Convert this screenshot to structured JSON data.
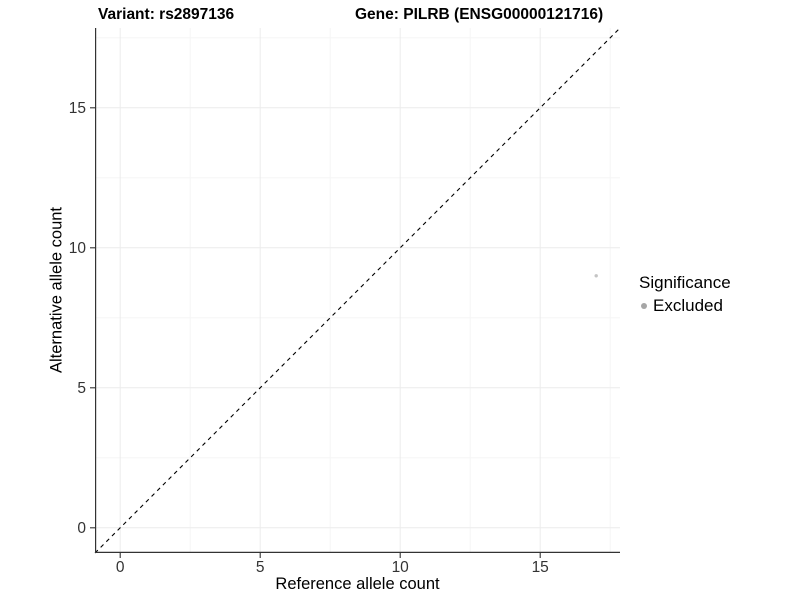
{
  "chart_data": {
    "type": "scatter",
    "titles": [
      "Variant: rs2897136",
      "Gene: PILRB (ENSG00000121716)"
    ],
    "xlabel": "Reference allele count",
    "ylabel": "Alternative allele count",
    "xlim": [
      -0.9,
      17.85
    ],
    "ylim": [
      -0.9,
      17.85
    ],
    "xticks": [
      0,
      5,
      10,
      15
    ],
    "yticks": [
      0,
      5,
      10,
      15
    ],
    "minor_ticks": [
      2.5,
      7.5,
      12.5,
      17.5
    ],
    "grid": "major and minor gridlines, very light gray, on white panel",
    "points": [
      {
        "x": 17,
        "y": 9,
        "series": "Excluded"
      }
    ],
    "abline": {
      "slope": 1,
      "intercept": 0,
      "style": "dashed"
    },
    "legend": {
      "position": "right",
      "title": "Significance",
      "items": [
        {
          "label": "Excluded",
          "color": "#a6a6a6"
        }
      ]
    },
    "colors": {
      "point": "#c4c4c4",
      "legend_dot": "#a6a6a6",
      "abline": "#000000",
      "grid_major": "#ececec",
      "grid_minor": "#f5f5f5",
      "axis_line": "#333333",
      "axis_text": "#333333",
      "title_text": "#000000",
      "background": "#ffffff"
    }
  }
}
